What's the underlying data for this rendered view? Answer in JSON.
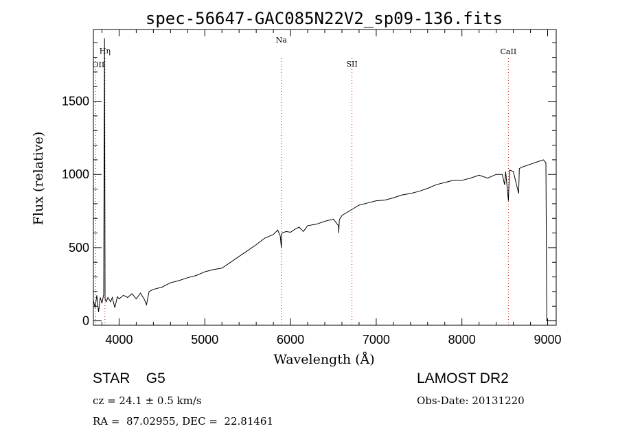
{
  "chart_data": {
    "type": "line",
    "title": "spec-56647-GAC085N22V2_sp09-136.fits",
    "xlabel": "Wavelength (Å)",
    "ylabel": "Flux (relative)",
    "xlim": [
      3700,
      9100
    ],
    "ylim": [
      -30,
      1990
    ],
    "x_ticks": [
      4000,
      5000,
      6000,
      7000,
      8000,
      9000
    ],
    "y_ticks": [
      0,
      500,
      1000,
      1500
    ],
    "grid": false,
    "series": [
      {
        "points": [
          [
            3700,
            140
          ],
          [
            3720,
            90
          ],
          [
            3740,
            175
          ],
          [
            3760,
            60
          ],
          [
            3780,
            160
          ],
          [
            3800,
            120
          ],
          [
            3820,
            180
          ],
          [
            3830,
            1930
          ],
          [
            3836,
            150
          ],
          [
            3850,
            130
          ],
          [
            3870,
            160
          ],
          [
            3900,
            130
          ],
          [
            3920,
            160
          ],
          [
            3950,
            90
          ],
          [
            3980,
            165
          ],
          [
            4000,
            150
          ],
          [
            4050,
            175
          ],
          [
            4100,
            160
          ],
          [
            4150,
            185
          ],
          [
            4200,
            150
          ],
          [
            4250,
            190
          ],
          [
            4300,
            140
          ],
          [
            4320,
            110
          ],
          [
            4350,
            200
          ],
          [
            4400,
            215
          ],
          [
            4500,
            230
          ],
          [
            4600,
            260
          ],
          [
            4700,
            275
          ],
          [
            4800,
            295
          ],
          [
            4900,
            310
          ],
          [
            5000,
            335
          ],
          [
            5100,
            350
          ],
          [
            5200,
            360
          ],
          [
            5300,
            400
          ],
          [
            5400,
            440
          ],
          [
            5500,
            480
          ],
          [
            5600,
            520
          ],
          [
            5700,
            565
          ],
          [
            5800,
            590
          ],
          [
            5850,
            620
          ],
          [
            5880,
            580
          ],
          [
            5893,
            500
          ],
          [
            5900,
            600
          ],
          [
            5950,
            610
          ],
          [
            6000,
            605
          ],
          [
            6050,
            625
          ],
          [
            6100,
            640
          ],
          [
            6150,
            610
          ],
          [
            6200,
            650
          ],
          [
            6300,
            660
          ],
          [
            6400,
            680
          ],
          [
            6500,
            695
          ],
          [
            6560,
            650
          ],
          [
            6563,
            600
          ],
          [
            6570,
            690
          ],
          [
            6600,
            720
          ],
          [
            6700,
            755
          ],
          [
            6800,
            790
          ],
          [
            6900,
            805
          ],
          [
            7000,
            820
          ],
          [
            7100,
            825
          ],
          [
            7200,
            840
          ],
          [
            7300,
            860
          ],
          [
            7400,
            870
          ],
          [
            7500,
            885
          ],
          [
            7600,
            905
          ],
          [
            7700,
            930
          ],
          [
            7800,
            945
          ],
          [
            7900,
            960
          ],
          [
            8000,
            960
          ],
          [
            8100,
            975
          ],
          [
            8200,
            995
          ],
          [
            8300,
            975
          ],
          [
            8400,
            1000
          ],
          [
            8470,
            1000
          ],
          [
            8498,
            930
          ],
          [
            8510,
            1020
          ],
          [
            8542,
            820
          ],
          [
            8555,
            1030
          ],
          [
            8600,
            1020
          ],
          [
            8662,
            870
          ],
          [
            8670,
            1040
          ],
          [
            8700,
            1050
          ],
          [
            8800,
            1070
          ],
          [
            8900,
            1090
          ],
          [
            8950,
            1100
          ],
          [
            8980,
            1080
          ],
          [
            8990,
            0
          ],
          [
            9000,
            0
          ]
        ]
      }
    ],
    "lines": [
      {
        "wavelength": 3727,
        "label": "OII"
      },
      {
        "wavelength": 3835,
        "label": "Hη"
      },
      {
        "wavelength": 5893,
        "label": "Na"
      },
      {
        "wavelength": 6717,
        "label": "SII"
      },
      {
        "wavelength": 8542,
        "label": "CaII"
      }
    ],
    "line_color": "#cc0000"
  },
  "info": {
    "class_line": "STAR    G5",
    "survey": "LAMOST DR2",
    "cz_line": "cz = 24.1 ± 0.5 km/s",
    "obs_date": "Obs-Date: 20131220",
    "coord_line": "RA =  87.02955, DEC =  22.81461"
  }
}
